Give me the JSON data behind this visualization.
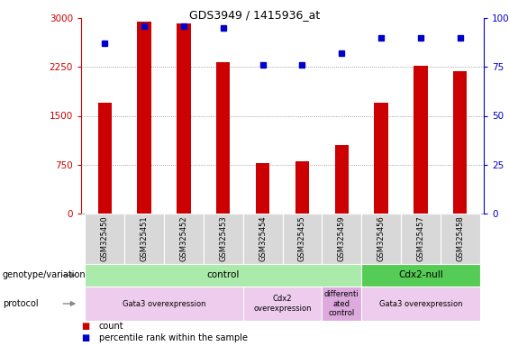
{
  "title": "GDS3949 / 1415936_at",
  "samples": [
    "GSM325450",
    "GSM325451",
    "GSM325452",
    "GSM325453",
    "GSM325454",
    "GSM325455",
    "GSM325459",
    "GSM325456",
    "GSM325457",
    "GSM325458"
  ],
  "counts": [
    1700,
    2950,
    2920,
    2320,
    775,
    800,
    1050,
    1700,
    2270,
    2180
  ],
  "percentile_ranks": [
    87,
    96,
    96,
    95,
    76,
    76,
    82,
    90,
    90,
    90
  ],
  "ylim_left": [
    0,
    3000
  ],
  "ylim_right": [
    0,
    100
  ],
  "yticks_left": [
    0,
    750,
    1500,
    2250,
    3000
  ],
  "yticks_right": [
    0,
    25,
    50,
    75,
    100
  ],
  "bar_color": "#cc0000",
  "dot_color": "#0000cc",
  "grid_color": "#888888",
  "genotype_groups": [
    {
      "label": "control",
      "start": 0,
      "end": 7,
      "color": "#aaeaaa"
    },
    {
      "label": "Cdx2-null",
      "start": 7,
      "end": 10,
      "color": "#55cc55"
    }
  ],
  "protocol_groups": [
    {
      "label": "Gata3 overexpression",
      "start": 0,
      "end": 4,
      "color": "#eeccee"
    },
    {
      "label": "Cdx2\noverexpression",
      "start": 4,
      "end": 6,
      "color": "#eeccee"
    },
    {
      "label": "differenti\nated\ncontrol",
      "start": 6,
      "end": 7,
      "color": "#ddaadd"
    },
    {
      "label": "Gata3 overexpression",
      "start": 7,
      "end": 10,
      "color": "#eeccee"
    }
  ],
  "left_axis_color": "#cc0000",
  "right_axis_color": "#0000cc",
  "label_genotype": "genotype/variation",
  "label_protocol": "protocol",
  "legend_count_label": "count",
  "legend_pct_label": "percentile rank within the sample"
}
